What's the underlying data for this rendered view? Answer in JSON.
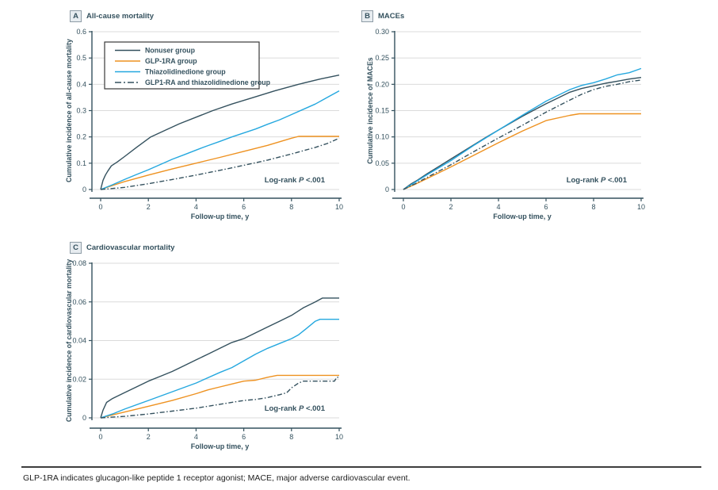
{
  "page": {
    "footnote": "GLP-1RA indicates glucagon-like peptide 1 receptor agonist; MACE, major adverse cardiovascular event."
  },
  "colors": {
    "axis": "#34515E",
    "text": "#34515E",
    "grid": "#DBDBDB",
    "navy": "#34515E",
    "orange": "#EE9221",
    "cyan": "#25A8DF",
    "legend_border": "#3A3A3A",
    "footer_text": "#222222"
  },
  "legend": {
    "items": [
      {
        "label": "Nonuser group",
        "color": "#34515E",
        "dash": "solid"
      },
      {
        "label": "GLP-1RA group",
        "color": "#EE9221",
        "dash": "solid"
      },
      {
        "label": "Thiazolidinedione group",
        "color": "#25A8DF",
        "dash": "solid"
      },
      {
        "label": "GLP1-RA and thiazolidinedione group",
        "color": "#34515E",
        "dash": "8 3 2 3"
      }
    ]
  },
  "chart_data": [
    {
      "panel_label": "A",
      "title": "All-cause mortality",
      "type": "line",
      "xlabel": "Follow-up time, y",
      "ylabel": "Cumulative incidence of all-cause mortality",
      "xlim": [
        0,
        10
      ],
      "ylim": [
        0,
        0.6
      ],
      "xticks": [
        0,
        2,
        4,
        6,
        8,
        10
      ],
      "xtick_labels": [
        "0",
        "2",
        "4",
        "6",
        "8",
        "10"
      ],
      "yticks": [
        0,
        0.1,
        0.2,
        0.3,
        0.4,
        0.5,
        0.6
      ],
      "ytick_labels": [
        "0",
        "0.1",
        "0.2",
        "0.3",
        "0.4",
        "0.5",
        "0.6"
      ],
      "grid": true,
      "show_legend": true,
      "legend_position": "upper-left",
      "annotation": {
        "prefix": "Log-rank ",
        "italic": "P",
        "suffix": " <.001"
      },
      "series": [
        {
          "name": "Nonuser group",
          "color": "#34515E",
          "dash": "solid",
          "points": [
            [
              0,
              0
            ],
            [
              0.1,
              0.035
            ],
            [
              0.2,
              0.055
            ],
            [
              0.3,
              0.07
            ],
            [
              0.45,
              0.09
            ],
            [
              0.7,
              0.105
            ],
            [
              1,
              0.125
            ],
            [
              1.5,
              0.16
            ],
            [
              2.1,
              0.2
            ],
            [
              2.7,
              0.225
            ],
            [
              3.3,
              0.25
            ],
            [
              4,
              0.275
            ],
            [
              4.7,
              0.3
            ],
            [
              5.5,
              0.325
            ],
            [
              6.4,
              0.35
            ],
            [
              7.3,
              0.375
            ],
            [
              8.3,
              0.4
            ],
            [
              9.2,
              0.42
            ],
            [
              10,
              0.435
            ]
          ]
        },
        {
          "name": "GLP-1RA group",
          "color": "#EE9221",
          "dash": "solid",
          "points": [
            [
              0,
              0
            ],
            [
              0.5,
              0.015
            ],
            [
              1,
              0.03
            ],
            [
              2,
              0.055
            ],
            [
              3,
              0.078
            ],
            [
              4,
              0.1
            ],
            [
              5,
              0.122
            ],
            [
              6,
              0.145
            ],
            [
              7,
              0.168
            ],
            [
              8,
              0.195
            ],
            [
              8.3,
              0.202
            ],
            [
              10,
              0.202
            ]
          ]
        },
        {
          "name": "Thiazolidinedione group",
          "color": "#25A8DF",
          "dash": "solid",
          "points": [
            [
              0,
              0
            ],
            [
              0.5,
              0.018
            ],
            [
              1,
              0.038
            ],
            [
              1.5,
              0.057
            ],
            [
              2,
              0.075
            ],
            [
              2.5,
              0.095
            ],
            [
              3,
              0.115
            ],
            [
              3.5,
              0.132
            ],
            [
              4,
              0.15
            ],
            [
              4.5,
              0.167
            ],
            [
              5,
              0.183
            ],
            [
              5.5,
              0.2
            ],
            [
              6,
              0.215
            ],
            [
              6.5,
              0.23
            ],
            [
              7,
              0.248
            ],
            [
              7.5,
              0.265
            ],
            [
              8,
              0.285
            ],
            [
              8.5,
              0.305
            ],
            [
              9,
              0.325
            ],
            [
              9.5,
              0.35
            ],
            [
              10,
              0.375
            ]
          ]
        },
        {
          "name": "GLP1-RA and thiazolidinedione group",
          "color": "#34515E",
          "dash": "6 2.5 1.5 2.5",
          "points": [
            [
              0,
              0
            ],
            [
              0.5,
              0.004
            ],
            [
              1,
              0.008
            ],
            [
              2,
              0.022
            ],
            [
              3,
              0.038
            ],
            [
              4,
              0.055
            ],
            [
              5,
              0.073
            ],
            [
              6,
              0.092
            ],
            [
              7,
              0.112
            ],
            [
              8,
              0.135
            ],
            [
              9,
              0.16
            ],
            [
              9.5,
              0.175
            ],
            [
              10,
              0.195
            ]
          ]
        }
      ]
    },
    {
      "panel_label": "B",
      "title": "MACEs",
      "type": "line",
      "xlabel": "Follow-up time, y",
      "ylabel": "Cumulative incidence of MACEs",
      "xlim": [
        0,
        10
      ],
      "ylim": [
        0,
        0.3
      ],
      "xticks": [
        0,
        2,
        4,
        6,
        8,
        10
      ],
      "xtick_labels": [
        "0",
        "2",
        "4",
        "6",
        "8",
        "10"
      ],
      "yticks": [
        0,
        0.05,
        0.1,
        0.15,
        0.2,
        0.25,
        0.3
      ],
      "ytick_labels": [
        "0",
        "0.05",
        "0.10",
        "0.15",
        "0.20",
        "0.25",
        "0.30"
      ],
      "grid": true,
      "show_legend": false,
      "annotation": {
        "prefix": "Log-rank ",
        "italic": "P",
        "suffix": " <.001"
      },
      "series": [
        {
          "name": "Nonuser group",
          "color": "#34515E",
          "dash": "solid",
          "points": [
            [
              0,
              0
            ],
            [
              0.3,
              0.01
            ],
            [
              0.6,
              0.018
            ],
            [
              1,
              0.03
            ],
            [
              1.5,
              0.044
            ],
            [
              2,
              0.058
            ],
            [
              2.5,
              0.072
            ],
            [
              3,
              0.086
            ],
            [
              3.5,
              0.1
            ],
            [
              4,
              0.113
            ],
            [
              4.5,
              0.126
            ],
            [
              5,
              0.139
            ],
            [
              5.5,
              0.151
            ],
            [
              6,
              0.163
            ],
            [
              6.5,
              0.174
            ],
            [
              7,
              0.185
            ],
            [
              7.5,
              0.192
            ],
            [
              8,
              0.197
            ],
            [
              8.5,
              0.202
            ],
            [
              9,
              0.206
            ],
            [
              9.5,
              0.21
            ],
            [
              10,
              0.213
            ]
          ]
        },
        {
          "name": "GLP-1RA group",
          "color": "#EE9221",
          "dash": "solid",
          "points": [
            [
              0,
              0
            ],
            [
              0.5,
              0.01
            ],
            [
              1,
              0.021
            ],
            [
              2,
              0.043
            ],
            [
              3,
              0.066
            ],
            [
              4,
              0.089
            ],
            [
              5,
              0.111
            ],
            [
              6,
              0.131
            ],
            [
              7,
              0.141
            ],
            [
              7.4,
              0.144
            ],
            [
              10,
              0.144
            ]
          ]
        },
        {
          "name": "Thiazolidinedione group",
          "color": "#25A8DF",
          "dash": "solid",
          "points": [
            [
              0,
              0
            ],
            [
              0.5,
              0.014
            ],
            [
              1,
              0.028
            ],
            [
              2,
              0.055
            ],
            [
              3,
              0.085
            ],
            [
              4,
              0.113
            ],
            [
              5,
              0.141
            ],
            [
              6,
              0.168
            ],
            [
              7,
              0.19
            ],
            [
              7.5,
              0.198
            ],
            [
              8,
              0.203
            ],
            [
              8.5,
              0.21
            ],
            [
              9,
              0.218
            ],
            [
              9.5,
              0.222
            ],
            [
              10,
              0.23
            ]
          ]
        },
        {
          "name": "GLP1-RA and thiazolidinedione group",
          "color": "#34515E",
          "dash": "6 2.5 1.5 2.5",
          "points": [
            [
              0,
              0
            ],
            [
              0.5,
              0.011
            ],
            [
              1,
              0.023
            ],
            [
              2,
              0.047
            ],
            [
              3,
              0.073
            ],
            [
              4,
              0.098
            ],
            [
              5,
              0.122
            ],
            [
              6,
              0.147
            ],
            [
              7,
              0.17
            ],
            [
              7.5,
              0.181
            ],
            [
              8,
              0.19
            ],
            [
              8.5,
              0.196
            ],
            [
              9,
              0.2
            ],
            [
              9.5,
              0.205
            ],
            [
              10,
              0.208
            ]
          ]
        }
      ]
    },
    {
      "panel_label": "C",
      "title": "Cardiovascular mortality",
      "type": "line",
      "xlabel": "Follow-up time, y",
      "ylabel": "Cumulative incidence of cardiovascular mortality",
      "xlim": [
        0,
        10
      ],
      "ylim": [
        0,
        0.08
      ],
      "xticks": [
        0,
        2,
        4,
        6,
        8,
        10
      ],
      "xtick_labels": [
        "0",
        "2",
        "4",
        "6",
        "8",
        "10"
      ],
      "yticks": [
        0,
        0.02,
        0.04,
        0.06,
        0.08
      ],
      "ytick_labels": [
        "0",
        "0.02",
        "0.04",
        "0.06",
        "0.08"
      ],
      "grid": true,
      "show_legend": false,
      "annotation": {
        "prefix": "Log-rank ",
        "italic": "P",
        "suffix": " <.001"
      },
      "series": [
        {
          "name": "Nonuser group",
          "color": "#34515E",
          "dash": "solid",
          "points": [
            [
              0,
              0
            ],
            [
              0.1,
              0.004
            ],
            [
              0.25,
              0.008
            ],
            [
              0.5,
              0.01
            ],
            [
              1,
              0.013
            ],
            [
              1.5,
              0.016
            ],
            [
              2,
              0.019
            ],
            [
              2.5,
              0.0215
            ],
            [
              3,
              0.024
            ],
            [
              3.5,
              0.027
            ],
            [
              4,
              0.03
            ],
            [
              4.5,
              0.033
            ],
            [
              5,
              0.036
            ],
            [
              5.5,
              0.039
            ],
            [
              6,
              0.041
            ],
            [
              6.5,
              0.044
            ],
            [
              7,
              0.047
            ],
            [
              7.5,
              0.05
            ],
            [
              8,
              0.053
            ],
            [
              8.5,
              0.057
            ],
            [
              9,
              0.06
            ],
            [
              9.3,
              0.062
            ],
            [
              10,
              0.062
            ]
          ]
        },
        {
          "name": "GLP-1RA group",
          "color": "#EE9221",
          "dash": "solid",
          "points": [
            [
              0,
              0
            ],
            [
              0.5,
              0.0015
            ],
            [
              1,
              0.003
            ],
            [
              2,
              0.006
            ],
            [
              3,
              0.009
            ],
            [
              4,
              0.0125
            ],
            [
              4.5,
              0.0145
            ],
            [
              5,
              0.016
            ],
            [
              5.5,
              0.0175
            ],
            [
              6,
              0.019
            ],
            [
              6.5,
              0.0195
            ],
            [
              7,
              0.021
            ],
            [
              7.4,
              0.022
            ],
            [
              10,
              0.022
            ]
          ]
        },
        {
          "name": "Thiazolidinedione group",
          "color": "#25A8DF",
          "dash": "solid",
          "points": [
            [
              0,
              0
            ],
            [
              0.5,
              0.002
            ],
            [
              1,
              0.0045
            ],
            [
              2,
              0.009
            ],
            [
              3,
              0.0135
            ],
            [
              4,
              0.018
            ],
            [
              5,
              0.0235
            ],
            [
              5.5,
              0.026
            ],
            [
              6,
              0.0295
            ],
            [
              6.5,
              0.033
            ],
            [
              7,
              0.036
            ],
            [
              7.5,
              0.0385
            ],
            [
              8,
              0.041
            ],
            [
              8.3,
              0.043
            ],
            [
              8.6,
              0.046
            ],
            [
              9,
              0.05
            ],
            [
              9.2,
              0.051
            ],
            [
              10,
              0.051
            ]
          ]
        },
        {
          "name": "GLP1-RA and thiazolidinedione group",
          "color": "#34515E",
          "dash": "6 2.5 1.5 2.5",
          "points": [
            [
              0,
              0
            ],
            [
              1,
              0.0008
            ],
            [
              2,
              0.002
            ],
            [
              3,
              0.0035
            ],
            [
              4,
              0.005
            ],
            [
              5,
              0.007
            ],
            [
              6,
              0.009
            ],
            [
              6.5,
              0.0095
            ],
            [
              7,
              0.0105
            ],
            [
              7.5,
              0.012
            ],
            [
              7.8,
              0.013
            ],
            [
              8,
              0.0155
            ],
            [
              8.3,
              0.018
            ],
            [
              8.5,
              0.019
            ],
            [
              9.8,
              0.019
            ],
            [
              9.9,
              0.021
            ],
            [
              10,
              0.021
            ]
          ]
        }
      ]
    }
  ]
}
